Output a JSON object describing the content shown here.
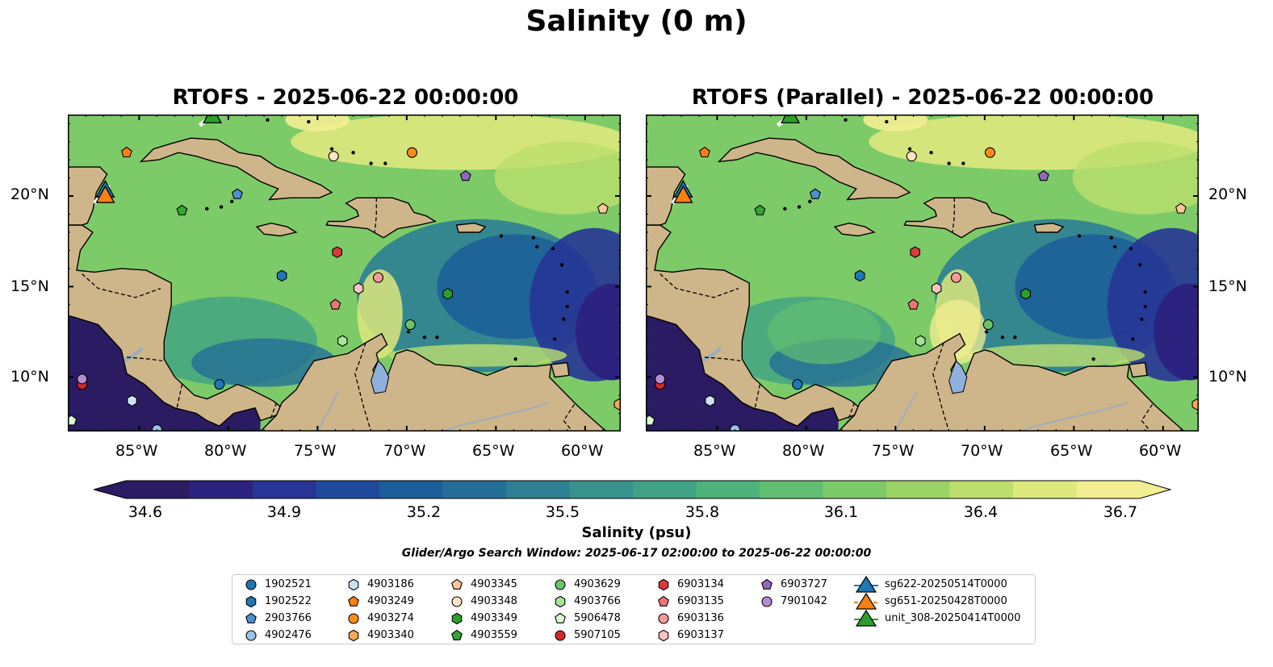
{
  "figure": {
    "title": "Salinity (0 m)",
    "panels": [
      {
        "title": "RTOFS - 2025-06-22 00:00:00"
      },
      {
        "title": "RTOFS (Parallel) - 2025-06-22 00:00:00"
      }
    ],
    "lon_ticks": [
      "85°W",
      "80°W",
      "75°W",
      "70°W",
      "65°W",
      "60°W"
    ],
    "lat_ticks": [
      "20°N",
      "15°N",
      "10°N"
    ],
    "colorbar": {
      "label": "Salinity (psu)",
      "ticks": [
        "34.6",
        "34.9",
        "35.2",
        "35.5",
        "35.8",
        "36.1",
        "36.4",
        "36.7"
      ],
      "colors": [
        "#2a1b62",
        "#2c2381",
        "#263596",
        "#1f4a9c",
        "#1b5e9a",
        "#246e97",
        "#2e7f93",
        "#37918d",
        "#3fa285",
        "#4db27b",
        "#62bf71",
        "#7dca69",
        "#9bd466",
        "#bcde6e",
        "#dde87d",
        "#f4ee92"
      ]
    },
    "search_window": "Glider/Argo Search Window: 2025-06-17 02:00:00 to 2025-06-22 00:00:00",
    "land_color": "#cfb58a",
    "lake_color": "#8fb1dd",
    "river_color": "#9aacc4"
  },
  "map_extent": {
    "lon": [
      -89,
      -58
    ],
    "lat": [
      7,
      24.5
    ]
  },
  "floats": [
    {
      "id": "1902521",
      "marker": "circle",
      "color": "#1f77b4",
      "lon": -80.5,
      "lat": 9.6
    },
    {
      "id": "1902522",
      "marker": "hexagon",
      "color": "#1f77b4",
      "lon": -77.0,
      "lat": 15.6
    },
    {
      "id": "2903766",
      "marker": "pentagon",
      "color": "#4f8fcf",
      "lon": -79.5,
      "lat": 20.1
    },
    {
      "id": "4902476",
      "marker": "circle",
      "color": "#9cc3e8",
      "lon": -84.0,
      "lat": 7.1
    },
    {
      "id": "4903186",
      "marker": "hexagon",
      "color": "#cde3f5",
      "lon": -85.4,
      "lat": 8.7
    },
    {
      "id": "4903249",
      "marker": "pentagon",
      "color": "#ff7f0e",
      "lon": -85.7,
      "lat": 22.4
    },
    {
      "id": "4903274",
      "marker": "circle",
      "color": "#ff8c1a",
      "lon": -69.7,
      "lat": 22.4
    },
    {
      "id": "4903340",
      "marker": "hexagon",
      "color": "#ffa858",
      "lon": -58.1,
      "lat": 8.5
    },
    {
      "id": "4903345",
      "marker": "pentagon",
      "color": "#ffc79a",
      "lon": -59.0,
      "lat": 19.3
    },
    {
      "id": "4903348",
      "marker": "circle",
      "color": "#ffe3c5",
      "lon": -74.1,
      "lat": 22.2
    },
    {
      "id": "4903349",
      "marker": "hexagon",
      "color": "#2ca02c",
      "lon": -67.7,
      "lat": 14.6
    },
    {
      "id": "4903559",
      "marker": "pentagon",
      "color": "#35a535",
      "lon": -82.6,
      "lat": 19.2
    },
    {
      "id": "4903629",
      "marker": "circle",
      "color": "#6bc46b",
      "lon": -69.8,
      "lat": 12.9
    },
    {
      "id": "4903766",
      "marker": "hexagon",
      "color": "#a6e39b",
      "lon": -73.6,
      "lat": 12.0
    },
    {
      "id": "5906478",
      "marker": "pentagon",
      "color": "#d8fbd0",
      "lon": -88.8,
      "lat": 7.6
    },
    {
      "id": "5907105",
      "marker": "circle",
      "color": "#d62728",
      "lon": -88.2,
      "lat": 9.6
    },
    {
      "id": "6903134",
      "marker": "hexagon",
      "color": "#d93a3a",
      "lon": -73.9,
      "lat": 16.9
    },
    {
      "id": "6903135",
      "marker": "pentagon",
      "color": "#ee7474",
      "lon": -74.0,
      "lat": 14.0
    },
    {
      "id": "6903136",
      "marker": "circle",
      "color": "#f59b9b",
      "lon": -71.6,
      "lat": 15.5
    },
    {
      "id": "6903137",
      "marker": "hexagon",
      "color": "#fbc4c4",
      "lon": -72.7,
      "lat": 14.9
    },
    {
      "id": "6903727",
      "marker": "pentagon",
      "color": "#9467bd",
      "lon": -66.7,
      "lat": 21.1
    },
    {
      "id": "7901042",
      "marker": "circle",
      "color": "#b58bd6",
      "lon": -88.2,
      "lat": 9.9
    }
  ],
  "gliders": [
    {
      "id": "sg622-20250514T0000",
      "color": "#1f77b4",
      "lon": -86.9,
      "lat": 20.3
    },
    {
      "id": "sg651-20250428T0000",
      "color": "#ff7f0e",
      "lon": -86.9,
      "lat": 20.0
    },
    {
      "id": "unit_308-20250414T0000",
      "color": "#2ca02c",
      "lon": -80.9,
      "lat": 24.4
    }
  ]
}
